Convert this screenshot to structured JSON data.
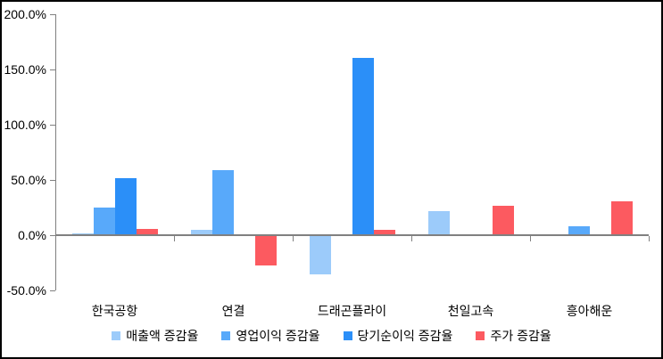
{
  "chart_data": {
    "type": "bar",
    "title": "",
    "xlabel": "",
    "ylabel": "",
    "categories": [
      "한국공항",
      "연결",
      "드래곤플라이",
      "천일고속",
      "흥아해운"
    ],
    "series": [
      {
        "name": "매출액 증감율",
        "color": "#9CCBFA",
        "values": [
          1,
          4,
          -35,
          21,
          0
        ]
      },
      {
        "name": "영업이익 증감율",
        "color": "#58A9FA",
        "values": [
          24,
          58,
          0,
          0,
          7
        ]
      },
      {
        "name": "당기순이익 증감율",
        "color": "#2B8FF8",
        "values": [
          51,
          0,
          160,
          0,
          0
        ]
      },
      {
        "name": "주가 증감율",
        "color": "#FC5A60",
        "values": [
          5,
          -27,
          4,
          26,
          30
        ]
      }
    ],
    "ylim": [
      -50,
      200
    ],
    "ytick_step": 50,
    "yticks": [
      {
        "value": 200,
        "label": "200.0%"
      },
      {
        "value": 150,
        "label": "150.0%"
      },
      {
        "value": 100,
        "label": "100.0%"
      },
      {
        "value": 50,
        "label": "50.0%"
      },
      {
        "value": 0,
        "label": "0.0%"
      },
      {
        "value": -50,
        "label": "-50.0%"
      }
    ],
    "grid": false,
    "legend_position": "bottom",
    "axis_color": "#808080",
    "background_color": "#FFFFFF",
    "border_color": "#000000"
  }
}
